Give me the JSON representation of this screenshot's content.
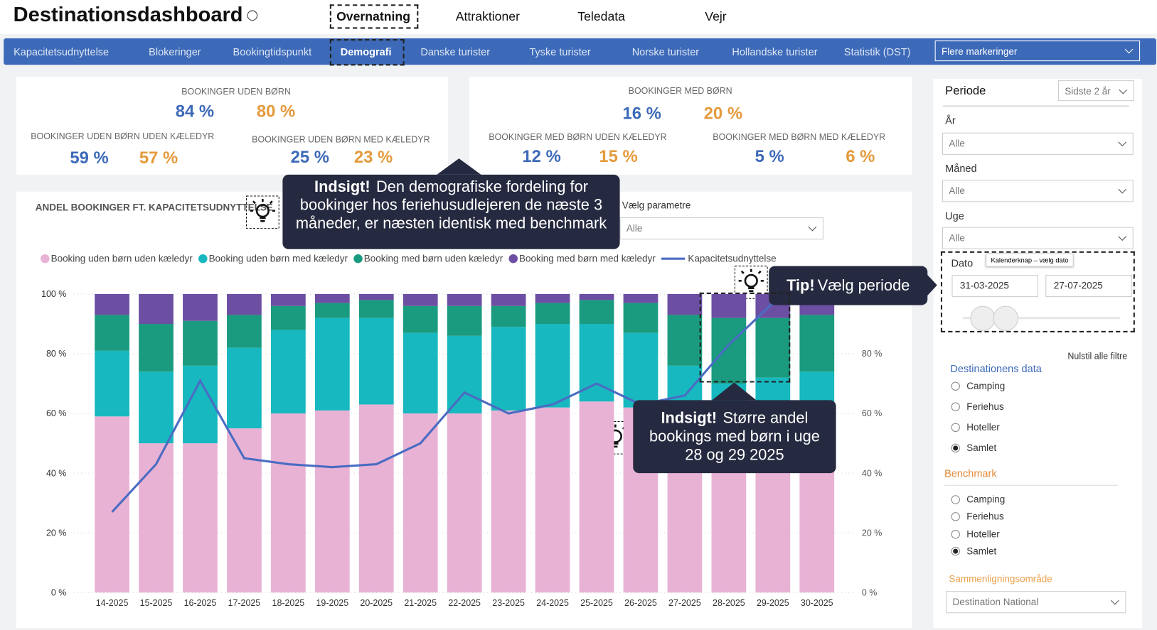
{
  "header": {
    "title": "Destinationsdashboard",
    "tabs": [
      "Overnatning",
      "Attraktioner",
      "Teledata",
      "Vejr"
    ]
  },
  "subnav": {
    "items": [
      "Kapacitetsudnyttelse",
      "Blokeringer",
      "Bookingtidspunkt",
      "Demografi",
      "Danske turister",
      "Tyske turister",
      "Norske turister",
      "Hollandske turister",
      "Statistik (DST)"
    ],
    "dropdown": "Flere markeringer"
  },
  "kpis": [
    {
      "title": "BOOKINGER UDEN BØRN",
      "values": [
        "84 %",
        "80 %"
      ]
    },
    {
      "title": "BOOKINGER UDEN BØRN UDEN KÆLEDYR",
      "values": [
        "59 %",
        "57 %"
      ]
    },
    {
      "title": "BOOKINGER UDEN BØRN MED KÆLEDYR",
      "values": [
        "25 %",
        "23 %"
      ]
    },
    {
      "title": "BOOKINGER MED BØRN",
      "values": [
        "16 %",
        "20 %"
      ]
    },
    {
      "title": "BOOKINGER MED BØRN UDEN KÆLEDYR",
      "values": [
        "12 %",
        "15 %"
      ]
    },
    {
      "title": "BOOKINGER MED BØRN MED KÆLEDYR",
      "values": [
        "5 %",
        "6 %"
      ]
    }
  ],
  "parameter": {
    "label": "Vælg parametre",
    "value": "Alle"
  },
  "chart_data": {
    "type": "bar",
    "stacked": true,
    "title": "ANDEL BOOKINGER FT. KAPACITETSUDNYTTELSE",
    "categories": [
      "14-2025",
      "15-2025",
      "16-2025",
      "17-2025",
      "18-2025",
      "19-2025",
      "20-2025",
      "21-2025",
      "22-2025",
      "23-2025",
      "24-2025",
      "25-2025",
      "26-2025",
      "27-2025",
      "28-2025",
      "29-2025",
      "30-2025"
    ],
    "series": [
      {
        "name": "Booking uden børn uden kæledyr",
        "color": "#e8b2d5",
        "values": [
          59,
          50,
          50,
          55,
          60,
          61,
          63,
          60,
          60,
          61,
          62,
          64,
          62,
          62,
          63,
          62,
          62
        ]
      },
      {
        "name": "Booking uden børn med kæledyr",
        "color": "#17b8bf",
        "values": [
          22,
          24,
          26,
          27,
          28,
          31,
          29,
          27,
          26,
          28,
          28,
          26,
          25,
          14,
          7,
          10,
          12
        ]
      },
      {
        "name": "Booking med børn uden kæledyr",
        "color": "#1a9b7f",
        "values": [
          12,
          16,
          15,
          11,
          8,
          5,
          6,
          9,
          10,
          7,
          7,
          8,
          10,
          17,
          22,
          20,
          19
        ]
      },
      {
        "name": "Booking med børn med kæledyr",
        "color": "#6c4fa3",
        "values": [
          7,
          10,
          9,
          7,
          4,
          3,
          2,
          4,
          4,
          4,
          3,
          2,
          3,
          7,
          8,
          8,
          7
        ]
      },
      {
        "name": "Kapacitetsudnyttelse",
        "type": "line",
        "axis": "y2",
        "color": "#4a6cc2",
        "values": [
          27,
          43,
          71,
          45,
          43,
          42,
          43,
          50,
          67,
          60,
          63,
          70,
          63,
          66,
          83,
          97,
          null
        ]
      }
    ],
    "ylim": [
      0,
      100
    ],
    "yticks": [
      {
        "value": 0,
        "label": "0 %"
      },
      {
        "value": 20,
        "label": "20 %"
      },
      {
        "value": 40,
        "label": "40 %"
      },
      {
        "value": 60,
        "label": "60 %"
      },
      {
        "value": 80,
        "label": "80 %"
      },
      {
        "value": 100,
        "label": "100 %"
      }
    ],
    "y2lim": [
      0,
      100
    ],
    "y2ticks": [
      {
        "value": 0,
        "label": "0 %"
      },
      {
        "value": 20,
        "label": "20 %"
      },
      {
        "value": 40,
        "label": "40 %"
      },
      {
        "value": 60,
        "label": "60 %"
      },
      {
        "value": 80,
        "label": "80 %"
      }
    ],
    "grid": true
  },
  "callouts": [
    {
      "bold": "Indsigt!",
      "text": "Den demografiske fordeling for bookinger hos feriehusudlejeren de næste 3 måneder, er næsten identisk med benchmark"
    },
    {
      "bold": "Tip!",
      "text": "Vælg periode"
    },
    {
      "bold": "Indsigt!",
      "text": "Større andel bookings med børn i uge 28 og 29 2025"
    }
  ],
  "filters": {
    "period": "Periode",
    "period_value": "Sidste 2 år",
    "year": "År",
    "year_value": "Alle",
    "month": "Måned",
    "month_value": "Alle",
    "week": "Uge",
    "week_value": "Alle",
    "date": "Dato",
    "date_tooltip": "Kalenderknap – vælg dato",
    "date_from": "31-03-2025",
    "date_to": "27-07-2025",
    "reset": "Nulstil alle filtre",
    "destination": {
      "title": "Destinationens data",
      "options": [
        "Camping",
        "Feriehus",
        "Hoteller",
        "Samlet"
      ],
      "selected": 3
    },
    "benchmark": {
      "title": "Benchmark",
      "options": [
        "Camping",
        "Feriehus",
        "Hoteller",
        "Samlet"
      ],
      "selected": 3
    },
    "area": "Sammenligningsområde",
    "area_value": "Destination National"
  }
}
